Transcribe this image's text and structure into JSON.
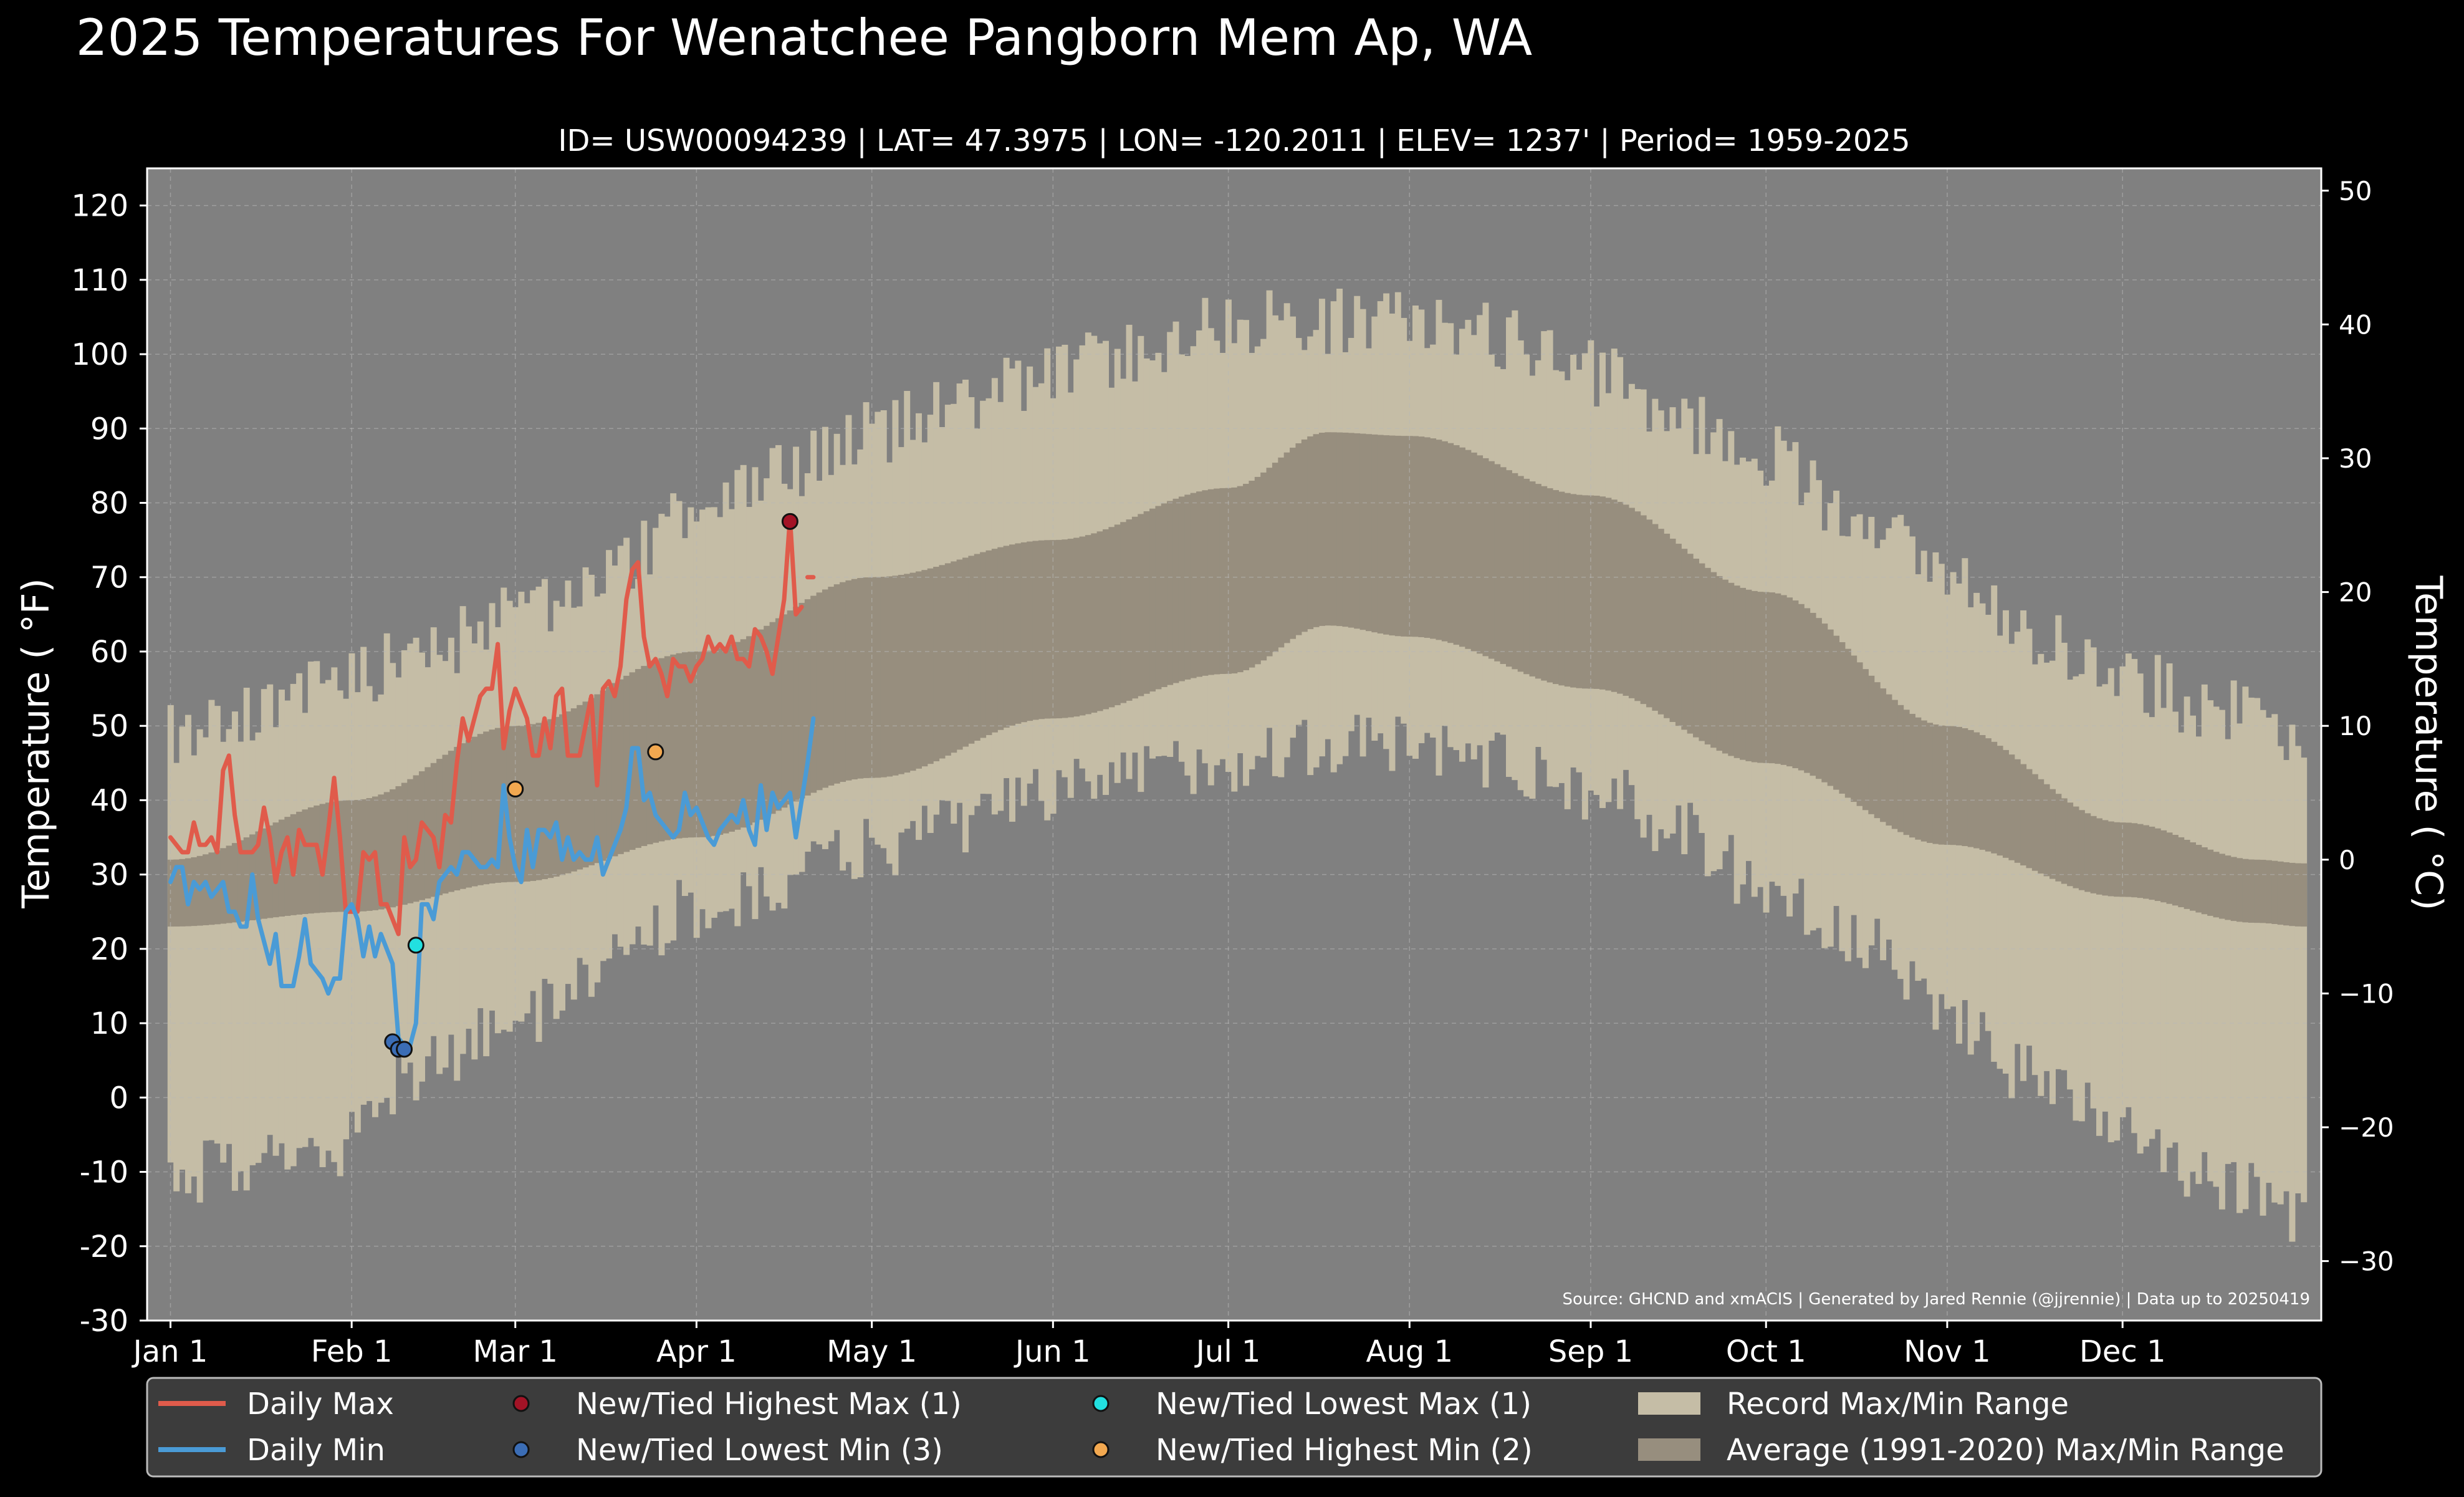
{
  "chart_data": {
    "type": "area",
    "title": "2025 Temperatures For Wenatchee Pangborn Mem Ap, WA",
    "subtitle": "ID= USW00094239 | LAT= 47.3975 | LON= -120.2011 | ELEV= 1237' | Period= 1959-2025",
    "ylabel_left": "Temperature ( °F)",
    "ylabel_right": "Temperature ( °C)",
    "source": "Source: GHCND and xmACIS | Generated by Jared Rennie (@jjrennie) | Data up to 20250419",
    "x_tick_labels": [
      "Jan 1",
      "Feb 1",
      "Mar 1",
      "Apr 1",
      "May 1",
      "Jun 1",
      "Jul 1",
      "Aug 1",
      "Sep 1",
      "Oct 1",
      "Nov 1",
      "Dec 1"
    ],
    "x_tick_days": [
      1,
      32,
      60,
      91,
      121,
      152,
      182,
      213,
      244,
      274,
      305,
      335
    ],
    "xlim": [
      -3,
      369
    ],
    "ylim": [
      -30,
      125
    ],
    "y_ticks": [
      -30,
      -20,
      -10,
      0,
      10,
      20,
      30,
      40,
      50,
      60,
      70,
      80,
      90,
      100,
      110,
      120
    ],
    "y2_ticks": [
      -30,
      -20,
      -10,
      0,
      10,
      20,
      30,
      40,
      50
    ],
    "grid": true,
    "legend_placement": "bottom",
    "record_max_anchors": [
      [
        1,
        48
      ],
      [
        15,
        52
      ],
      [
        31,
        56
      ],
      [
        45,
        60
      ],
      [
        60,
        64
      ],
      [
        75,
        70
      ],
      [
        91,
        78
      ],
      [
        105,
        83
      ],
      [
        121,
        89
      ],
      [
        135,
        93
      ],
      [
        152,
        97
      ],
      [
        166,
        100
      ],
      [
        182,
        104
      ],
      [
        196,
        104
      ],
      [
        213,
        104
      ],
      [
        228,
        102
      ],
      [
        244,
        97
      ],
      [
        258,
        91
      ],
      [
        274,
        86
      ],
      [
        288,
        79
      ],
      [
        305,
        70
      ],
      [
        320,
        62
      ],
      [
        335,
        56
      ],
      [
        350,
        52
      ],
      [
        366,
        49
      ]
    ],
    "record_min_anchors": [
      [
        1,
        -10
      ],
      [
        15,
        -8
      ],
      [
        30,
        -6
      ],
      [
        45,
        5
      ],
      [
        60,
        10
      ],
      [
        75,
        18
      ],
      [
        91,
        26
      ],
      [
        105,
        29
      ],
      [
        121,
        34
      ],
      [
        135,
        37
      ],
      [
        152,
        41
      ],
      [
        166,
        44
      ],
      [
        182,
        46
      ],
      [
        196,
        48
      ],
      [
        213,
        48
      ],
      [
        228,
        46
      ],
      [
        244,
        42
      ],
      [
        258,
        37
      ],
      [
        274,
        29
      ],
      [
        288,
        22
      ],
      [
        305,
        12
      ],
      [
        320,
        3
      ],
      [
        335,
        -2
      ],
      [
        350,
        -10
      ],
      [
        366,
        -16
      ]
    ],
    "normal_max_anchors": [
      [
        1,
        32
      ],
      [
        32,
        40
      ],
      [
        60,
        50
      ],
      [
        91,
        60
      ],
      [
        121,
        70
      ],
      [
        152,
        75
      ],
      [
        182,
        82
      ],
      [
        199,
        89.5
      ],
      [
        213,
        89
      ],
      [
        244,
        81
      ],
      [
        274,
        68
      ],
      [
        305,
        50
      ],
      [
        335,
        37
      ],
      [
        358,
        32
      ],
      [
        366,
        31.5
      ]
    ],
    "normal_min_anchors": [
      [
        1,
        23
      ],
      [
        32,
        25
      ],
      [
        60,
        29
      ],
      [
        91,
        35
      ],
      [
        121,
        43
      ],
      [
        152,
        51
      ],
      [
        182,
        57
      ],
      [
        199,
        63.5
      ],
      [
        213,
        62
      ],
      [
        244,
        55
      ],
      [
        274,
        45
      ],
      [
        305,
        34
      ],
      [
        335,
        27
      ],
      [
        358,
        23.5
      ],
      [
        366,
        23
      ]
    ],
    "series": [
      {
        "name": "Daily Max",
        "color": "#e05b4b",
        "x": [
          1,
          2,
          3,
          4,
          5,
          6,
          7,
          8,
          9,
          10,
          11,
          12,
          13,
          14,
          15,
          16,
          17,
          18,
          19,
          20,
          21,
          22,
          23,
          24,
          25,
          26,
          27,
          28,
          29,
          30,
          31,
          32,
          33,
          34,
          35,
          36,
          37,
          38,
          39,
          40,
          41,
          42,
          43,
          44,
          45,
          46,
          47,
          48,
          49,
          50,
          51,
          52,
          53,
          54,
          55,
          56,
          57,
          58,
          59,
          60,
          61,
          62,
          63,
          64,
          65,
          66,
          67,
          68,
          69,
          70,
          71,
          72,
          73,
          74,
          75,
          76,
          77,
          78,
          79,
          80,
          81,
          82,
          83,
          84,
          85,
          86,
          87,
          88,
          89,
          90,
          91,
          92,
          93,
          94,
          95,
          96,
          97,
          98,
          99,
          100,
          101,
          102,
          103,
          104,
          105,
          106,
          107,
          108,
          109
        ],
        "values": [
          35,
          34,
          33,
          33,
          37,
          34,
          34,
          35,
          33,
          44,
          46,
          38,
          33,
          33,
          33,
          34,
          39,
          35,
          29,
          33,
          35,
          30,
          36,
          34,
          34,
          34,
          30,
          36,
          43,
          35,
          25,
          25,
          25,
          33,
          32,
          33,
          26,
          26,
          24,
          22,
          35,
          31,
          32,
          37,
          36,
          35,
          31,
          38,
          37,
          45,
          51,
          48,
          51,
          54,
          55,
          55,
          61,
          47,
          52,
          55,
          53,
          51,
          46,
          46,
          51,
          47,
          54,
          55,
          46,
          46,
          46,
          50,
          54,
          42,
          55,
          56,
          54,
          58,
          67,
          71,
          72,
          62,
          58,
          59,
          57,
          54,
          59,
          58,
          58,
          56,
          58,
          59,
          62,
          60,
          61,
          60,
          62,
          59,
          59,
          58,
          63,
          62,
          60,
          57,
          62,
          67,
          78,
          65,
          66
        ],
        "x2": [
          110,
          111
        ],
        "values2": [
          70,
          70
        ]
      },
      {
        "name": "Daily Min",
        "color": "#4a9bd6",
        "x": [
          1,
          2,
          3,
          4,
          5,
          6,
          7,
          8,
          9,
          10,
          11,
          12,
          13,
          14,
          15,
          16,
          17,
          18,
          19,
          20,
          21,
          22,
          23,
          24,
          25,
          26,
          27,
          28,
          29,
          30,
          31,
          32,
          33,
          34,
          35,
          36,
          37,
          38,
          39,
          40,
          41,
          42,
          43,
          44,
          45,
          46,
          47,
          48,
          49,
          50,
          51,
          52,
          53,
          54,
          55,
          56,
          57,
          58,
          59,
          60,
          61,
          62,
          63,
          64,
          65,
          66,
          67,
          68,
          69,
          70,
          71,
          72,
          73,
          74,
          75,
          76,
          77,
          78,
          79,
          80,
          81,
          82,
          83,
          84,
          85,
          86,
          87,
          88,
          89,
          90,
          91,
          92,
          93,
          94,
          95,
          96,
          97,
          98,
          99,
          100,
          101,
          102,
          103,
          104,
          105,
          106,
          107,
          108,
          109,
          110,
          111
        ],
        "values": [
          29,
          31,
          31,
          26,
          29,
          28,
          29,
          27,
          28,
          29,
          25,
          25,
          23,
          23,
          30,
          24,
          21,
          18,
          22,
          15,
          15,
          15,
          19,
          24,
          18,
          17,
          16,
          14,
          16,
          16,
          25,
          26,
          24,
          19,
          23,
          19,
          22,
          20,
          18,
          8,
          7,
          7,
          10,
          26,
          26,
          24,
          29,
          30,
          31,
          30,
          33,
          33,
          32,
          31,
          31,
          32,
          31,
          42,
          35,
          31,
          29,
          36,
          31,
          36,
          36,
          35,
          37,
          32,
          35,
          32,
          33,
          32,
          32,
          35,
          30,
          32,
          34,
          36,
          39,
          47,
          47,
          40,
          41,
          38,
          37,
          36,
          35,
          36,
          41,
          38,
          39,
          37,
          35,
          34,
          36,
          37,
          38,
          37,
          40,
          36,
          34,
          42,
          36,
          41,
          39,
          40,
          41,
          35,
          40,
          45,
          51
        ]
      }
    ],
    "records": [
      {
        "name": "New/Tied Highest Max (1)",
        "color": "#a31326",
        "points": [
          [
            107,
            77.5
          ]
        ]
      },
      {
        "name": "New/Tied Lowest Min (3)",
        "color": "#3b6db5",
        "points": [
          [
            39,
            7.5
          ],
          [
            40,
            6.5
          ],
          [
            41,
            6.5
          ]
        ]
      },
      {
        "name": "New/Tied Lowest Max (1)",
        "color": "#22e0e0",
        "points": [
          [
            43,
            20.5
          ]
        ]
      },
      {
        "name": "New/Tied Highest Min (2)",
        "color": "#f2a850",
        "points": [
          [
            60,
            41.5
          ],
          [
            84,
            46.5
          ]
        ]
      }
    ],
    "legend": [
      {
        "label": "Daily Max",
        "kind": "line",
        "color": "#e05b4b"
      },
      {
        "label": "Daily Min",
        "kind": "line",
        "color": "#4a9bd6"
      },
      {
        "label": "New/Tied Highest Max (1)",
        "kind": "dot",
        "color": "#a31326"
      },
      {
        "label": "New/Tied Lowest Min (3)",
        "kind": "dot",
        "color": "#3b6db5"
      },
      {
        "label": "New/Tied Lowest Max (1)",
        "kind": "dot",
        "color": "#22e0e0"
      },
      {
        "label": "New/Tied Highest Min (2)",
        "kind": "dot",
        "color": "#f2a850"
      },
      {
        "label": "Record Max/Min Range",
        "kind": "patch",
        "color": "#c5bda6"
      },
      {
        "label": "Average (1991-2020) Max/Min Range",
        "kind": "patch",
        "color": "#978e7e"
      }
    ],
    "colors": {
      "background": "#000000",
      "plot_background": "#808080",
      "record_range": "#c5bda6",
      "normal_range": "#978e7e",
      "grid": "#b8b8b8",
      "legend_background": "#3c3c3c"
    }
  }
}
